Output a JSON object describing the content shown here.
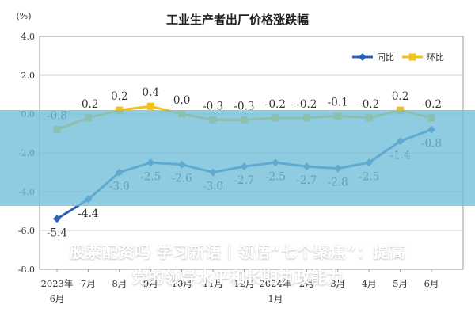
{
  "chart_data": {
    "type": "line",
    "title": "工业生产者出厂价格涨跌幅",
    "unit": "(%)",
    "categories": [
      [
        "2023年",
        "6月"
      ],
      [
        "7月"
      ],
      [
        "8月"
      ],
      [
        "9月"
      ],
      [
        "10月"
      ],
      [
        "11月"
      ],
      [
        "12月"
      ],
      [
        "2024年",
        "1月"
      ],
      [
        "2月"
      ],
      [
        "3月"
      ],
      [
        "4月"
      ],
      [
        "5月"
      ],
      [
        "6月"
      ]
    ],
    "yticks": [
      "4.0",
      "2.0",
      "0.0",
      "-2.0",
      "-4.0",
      "-6.0",
      "-8.0"
    ],
    "ylim": [
      -8,
      4
    ],
    "legend_position": "top-right",
    "series": [
      {
        "name": "同比",
        "color": "#2a62b4",
        "values": [
          -5.4,
          -4.4,
          -3.0,
          -2.5,
          -2.6,
          -3.0,
          -2.7,
          -2.5,
          -2.7,
          -2.8,
          -2.5,
          -1.4,
          -0.8
        ],
        "labels": [
          "-5.4",
          "-4.4",
          "-3.0",
          "-2.5",
          "-2.6",
          "-3.0",
          "-2.7",
          "-2.5",
          "-2.7",
          "-2.8",
          "-2.5",
          "-1.4",
          "-0.8"
        ]
      },
      {
        "name": "环比",
        "color": "#f3c21b",
        "values": [
          -0.8,
          -0.2,
          0.2,
          0.4,
          0.0,
          -0.3,
          -0.3,
          -0.2,
          -0.2,
          -0.1,
          -0.2,
          0.2,
          -0.2
        ],
        "labels": [
          "-0.8",
          "-0.2",
          "0.2",
          "0.4",
          "0.0",
          "-0.3",
          "-0.3",
          "-0.2",
          "-0.2",
          "-0.1",
          "-0.2",
          "0.2",
          "-0.2"
        ]
      }
    ]
  },
  "overlay": {
    "headline_line1": "股票配资吗 学习新语｜领悟“七个聚焦”：提高",
    "headline_line2": "党的领导水平和长期执政能力"
  }
}
